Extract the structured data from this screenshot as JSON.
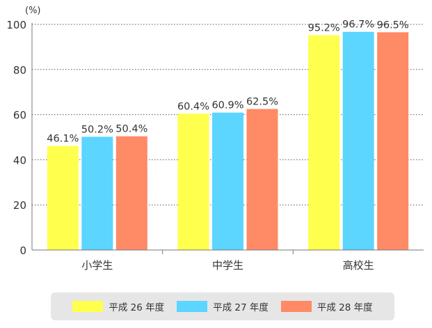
{
  "chart_data": {
    "type": "bar",
    "unit_label": "(%)",
    "categories": [
      "小学生",
      "中学生",
      "高校生"
    ],
    "series": [
      {
        "name": "平成 26 年度",
        "values": [
          46.1,
          60.4,
          95.2
        ],
        "color": "#ffff4d",
        "labels": [
          "46.1%",
          "60.4%",
          "95.2%"
        ]
      },
      {
        "name": "平成 27 年度",
        "values": [
          50.2,
          60.9,
          96.7
        ],
        "color": "#5cd5ff",
        "labels": [
          "50.2%",
          "60.9%",
          "96.7%"
        ]
      },
      {
        "name": "平成 28 年度",
        "values": [
          50.4,
          62.5,
          96.5
        ],
        "color": "#ff8a66",
        "labels": [
          "50.4%",
          "62.5%",
          "96.5%"
        ]
      }
    ],
    "yticks": [
      "0",
      "20",
      "40",
      "60",
      "80",
      "100"
    ],
    "ylim": [
      0,
      100
    ],
    "grid": true,
    "legend_position": "bottom"
  }
}
